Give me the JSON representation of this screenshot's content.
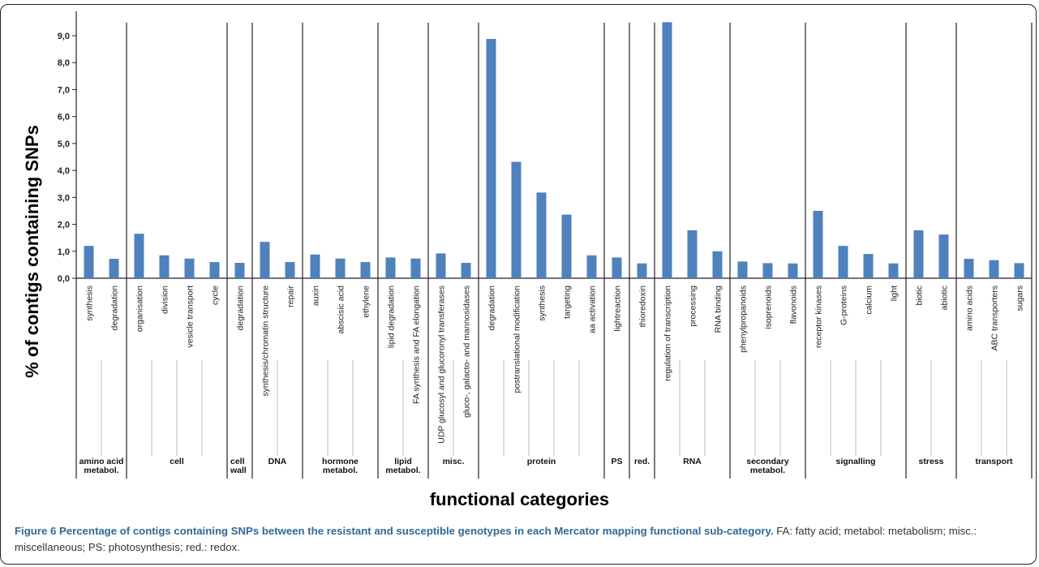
{
  "colors": {
    "bar": "#4f81bd",
    "caption_title": "#2f6a98"
  },
  "chart_data": {
    "type": "bar",
    "ylabel": "% of contigs containing SNPs",
    "xlabel": "functional categories",
    "ylim": [
      0,
      9.5
    ],
    "yticks": [
      "0,0",
      "1,0",
      "2,0",
      "3,0",
      "4,0",
      "5,0",
      "6,0",
      "7,0",
      "8,0",
      "9,0"
    ],
    "grid": false,
    "groups": [
      {
        "label": "amino acid\nmetabol.",
        "categories": [
          "synthesis",
          "degradation"
        ],
        "values": [
          1.2,
          0.72
        ]
      },
      {
        "label": "cell",
        "categories": [
          "organisation",
          "division",
          "vesicle transport",
          "cycle"
        ],
        "values": [
          1.65,
          0.85,
          0.73,
          0.6
        ]
      },
      {
        "label": "cell\nwall",
        "categories": [
          "degradation"
        ],
        "values": [
          0.57
        ]
      },
      {
        "label": "DNA",
        "categories": [
          "synthesis/chromatin structure",
          "repair"
        ],
        "values": [
          1.35,
          0.6
        ]
      },
      {
        "label": "hormone\nmetabol.",
        "categories": [
          "auxin",
          "abscisic acid",
          "ethylene"
        ],
        "values": [
          0.88,
          0.73,
          0.6
        ]
      },
      {
        "label": "lipid\nmetabol.",
        "categories": [
          "lipid degradation",
          "FA synthesis and FA elongation"
        ],
        "values": [
          0.77,
          0.73
        ]
      },
      {
        "label": "misc.",
        "categories": [
          "UDP glucosyl and glucoronyl transferases",
          "gluco-, galacto- and mannosidases"
        ],
        "values": [
          0.92,
          0.57
        ]
      },
      {
        "label": "protein",
        "categories": [
          "degradation",
          "postranslational modification",
          "synthesis",
          "targeting",
          "aa activation"
        ],
        "values": [
          8.88,
          4.32,
          3.18,
          2.36,
          0.85
        ]
      },
      {
        "label": "PS",
        "categories": [
          "lightreaction"
        ],
        "values": [
          0.77
        ]
      },
      {
        "label": "red.",
        "categories": [
          "thioredoxin"
        ],
        "values": [
          0.55
        ]
      },
      {
        "label": "RNA",
        "categories": [
          "regulation of transcription",
          "processing",
          "RNA binding"
        ],
        "values": [
          9.5,
          1.78,
          1.0
        ]
      },
      {
        "label": "secondary\nmetabol.",
        "categories": [
          "phenylpropanoids",
          "isoprenoids",
          "flavonoids"
        ],
        "values": [
          0.62,
          0.56,
          0.55
        ]
      },
      {
        "label": "signalling",
        "categories": [
          "receptor kinases",
          "G-proteins",
          "calcium",
          "light"
        ],
        "values": [
          2.5,
          1.2,
          0.9,
          0.55
        ]
      },
      {
        "label": "stress",
        "categories": [
          "biotic",
          "abiotic"
        ],
        "values": [
          1.78,
          1.62
        ]
      },
      {
        "label": "transport",
        "categories": [
          "amino acids",
          "ABC transporters",
          "sugars"
        ],
        "values": [
          0.72,
          0.67,
          0.56
        ]
      }
    ]
  },
  "caption": {
    "title": "Figure 6 Percentage of contigs containing SNPs between the resistant and susceptible genotypes in each Mercator mapping functional sub-category.",
    "text": " FA: fatty acid; metabol: metabolism; misc.: miscellaneous; PS: photosynthesis; red.: redox."
  }
}
